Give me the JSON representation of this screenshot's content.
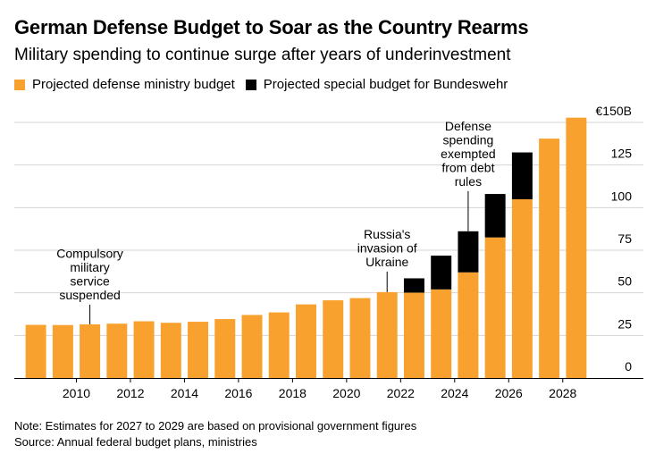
{
  "title": "German Defense Budget to Soar as the Country Rearms",
  "subtitle": "Military spending to continue surge after years of underinvestment",
  "legend": [
    {
      "label": "Projected defense ministry budget",
      "color": "#f9a12e"
    },
    {
      "label": "Projected special budget for Bundeswehr",
      "color": "#000000"
    }
  ],
  "notes": {
    "note": "Note: Estimates for 2027 to 2029 are based on provisional government figures",
    "source": "Source: Annual federal budget plans, ministries"
  },
  "chart_data": {
    "type": "bar",
    "stacked": true,
    "x": [
      2009,
      2010,
      2011,
      2012,
      2013,
      2014,
      2015,
      2016,
      2017,
      2018,
      2019,
      2020,
      2021,
      2022,
      2023,
      2024,
      2025,
      2026,
      2027,
      2028,
      2029
    ],
    "series": [
      {
        "name": "Projected defense ministry budget",
        "color": "#f9a12e",
        "values": [
          31.2,
          31.1,
          31.5,
          31.9,
          33.3,
          32.4,
          33.0,
          34.6,
          37.0,
          38.5,
          43.2,
          45.6,
          46.9,
          50.4,
          50.1,
          52.0,
          62.0,
          82.5,
          104.9,
          140.5,
          152.8
        ]
      },
      {
        "name": "Projected special budget for Bundeswehr",
        "color": "#000000",
        "values": [
          0,
          0,
          0,
          0,
          0,
          0,
          0,
          0,
          0,
          0,
          0,
          0,
          0,
          0,
          8.4,
          19.8,
          24.1,
          25.5,
          27.5,
          0,
          0
        ]
      }
    ],
    "ylim": [
      0,
      160
    ],
    "yticks": [
      0,
      25,
      50,
      75,
      100,
      125,
      150
    ],
    "ytick_labels": [
      "0",
      "25",
      "50",
      "75",
      "100",
      "125",
      "€150B"
    ],
    "xticks": [
      2010,
      2012,
      2014,
      2016,
      2018,
      2020,
      2022,
      2024,
      2026,
      2028
    ],
    "grid": true,
    "annotations": [
      {
        "x": 2011,
        "lines": [
          "Compulsory",
          "military",
          "service",
          "suspended"
        ]
      },
      {
        "x": 2022,
        "lines": [
          "Russia's",
          "invasion of",
          "Ukraine"
        ]
      },
      {
        "x": 2025,
        "lines": [
          "Defense",
          "spending",
          "exempted",
          "from debt",
          "rules"
        ]
      }
    ]
  }
}
